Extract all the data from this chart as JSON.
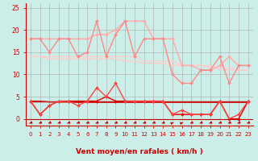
{
  "xlabel": "Vent moyen/en rafales ( km/h )",
  "bg_color": "#cceee8",
  "grid_color": "#aaaaaa",
  "xlim_min": -0.5,
  "xlim_max": 23.5,
  "ylim_min": -1.5,
  "ylim_max": 26,
  "yticks": [
    0,
    5,
    10,
    15,
    20,
    25
  ],
  "xtick_positions": [
    0,
    1,
    2,
    3,
    4,
    5,
    6,
    7,
    8,
    9,
    10,
    11,
    12,
    13,
    14,
    15,
    16,
    17,
    18,
    19,
    20,
    21,
    22,
    23
  ],
  "xtick_labels": [
    "0",
    "1",
    "2",
    "3",
    "4",
    "5",
    "6",
    "7",
    "8",
    "9",
    "10",
    "11",
    "12",
    "13",
    "14",
    "15",
    "16",
    "17",
    "18",
    "19",
    "20",
    "21",
    "22",
    "23"
  ],
  "series": [
    {
      "y": [
        18,
        18,
        18,
        18,
        18,
        18,
        18,
        19,
        19,
        20,
        22,
        22,
        22,
        18,
        18,
        18,
        12,
        12,
        11,
        11,
        12,
        14,
        12,
        12
      ],
      "color": "#ffaaaa",
      "lw": 1.0,
      "marker": "D",
      "ms": 2.0,
      "zorder": 3
    },
    {
      "y": [
        18,
        18,
        15,
        18,
        18,
        14,
        15,
        22,
        14,
        19,
        22,
        14,
        18,
        18,
        18,
        10,
        8,
        8,
        11,
        11,
        14,
        8,
        12,
        12
      ],
      "color": "#ff8888",
      "lw": 1.0,
      "marker": "D",
      "ms": 2.0,
      "zorder": 3
    },
    {
      "y": [
        14,
        14,
        14,
        14,
        14,
        14,
        14,
        14,
        14,
        14,
        14,
        14,
        13,
        13,
        13,
        13,
        12,
        12,
        12,
        12,
        11,
        11,
        11,
        11
      ],
      "color": "#ffcccc",
      "lw": 1.0,
      "marker": null,
      "ms": 0,
      "zorder": 2
    },
    {
      "y": [
        14,
        14,
        13.5,
        13.5,
        13.5,
        13.5,
        13.5,
        13.5,
        13.5,
        13.5,
        13,
        13,
        12.5,
        12.5,
        12.5,
        12,
        12,
        12,
        12,
        11.5,
        11.5,
        11.5,
        11,
        11
      ],
      "color": "#ffcccc",
      "lw": 1.0,
      "marker": null,
      "ms": 0,
      "zorder": 2
    },
    {
      "y": [
        4,
        1,
        3,
        4,
        4,
        4,
        4,
        4,
        5,
        4,
        4,
        4,
        4,
        4,
        4,
        1,
        1,
        1,
        1,
        1,
        4,
        0,
        0,
        4
      ],
      "color": "#dd0000",
      "lw": 1.0,
      "marker": "D",
      "ms": 2.0,
      "zorder": 4
    },
    {
      "y": [
        4,
        1,
        3,
        4,
        4,
        3,
        4,
        7,
        5,
        8,
        4,
        4,
        4,
        4,
        4,
        1,
        2,
        1,
        1,
        1,
        4,
        0,
        1,
        4
      ],
      "color": "#ff4444",
      "lw": 1.0,
      "marker": "D",
      "ms": 2.0,
      "zorder": 4
    },
    {
      "y": [
        4,
        4,
        4,
        4,
        4,
        4,
        4,
        4,
        4,
        4,
        4,
        4,
        4,
        4,
        4,
        4,
        4,
        4,
        4,
        4,
        4,
        4,
        4,
        4
      ],
      "color": "#bb0000",
      "lw": 1.0,
      "marker": null,
      "ms": 0,
      "zorder": 2
    },
    {
      "y": [
        4,
        4,
        3.8,
        3.8,
        3.8,
        3.7,
        3.7,
        3.7,
        3.7,
        3.7,
        3.7,
        3.7,
        3.7,
        3.7,
        3.7,
        3.7,
        3.7,
        3.7,
        3.7,
        3.7,
        3.7,
        3.7,
        3.7,
        3.7
      ],
      "color": "#cc2222",
      "lw": 1.0,
      "marker": null,
      "ms": 0,
      "zorder": 2
    }
  ],
  "arrow_color": "#cc0000",
  "tick_color": "#cc0000",
  "xlabel_color": "#cc0000",
  "xlabel_fontsize": 6.5,
  "tick_fontsize_x": 5.0,
  "tick_fontsize_y": 5.5,
  "arrow_angles_deg": [
    225,
    225,
    225,
    225,
    225,
    225,
    225,
    225,
    225,
    225,
    225,
    225,
    225,
    225,
    225,
    45,
    45,
    225,
    225,
    225,
    225,
    225,
    225,
    225
  ]
}
